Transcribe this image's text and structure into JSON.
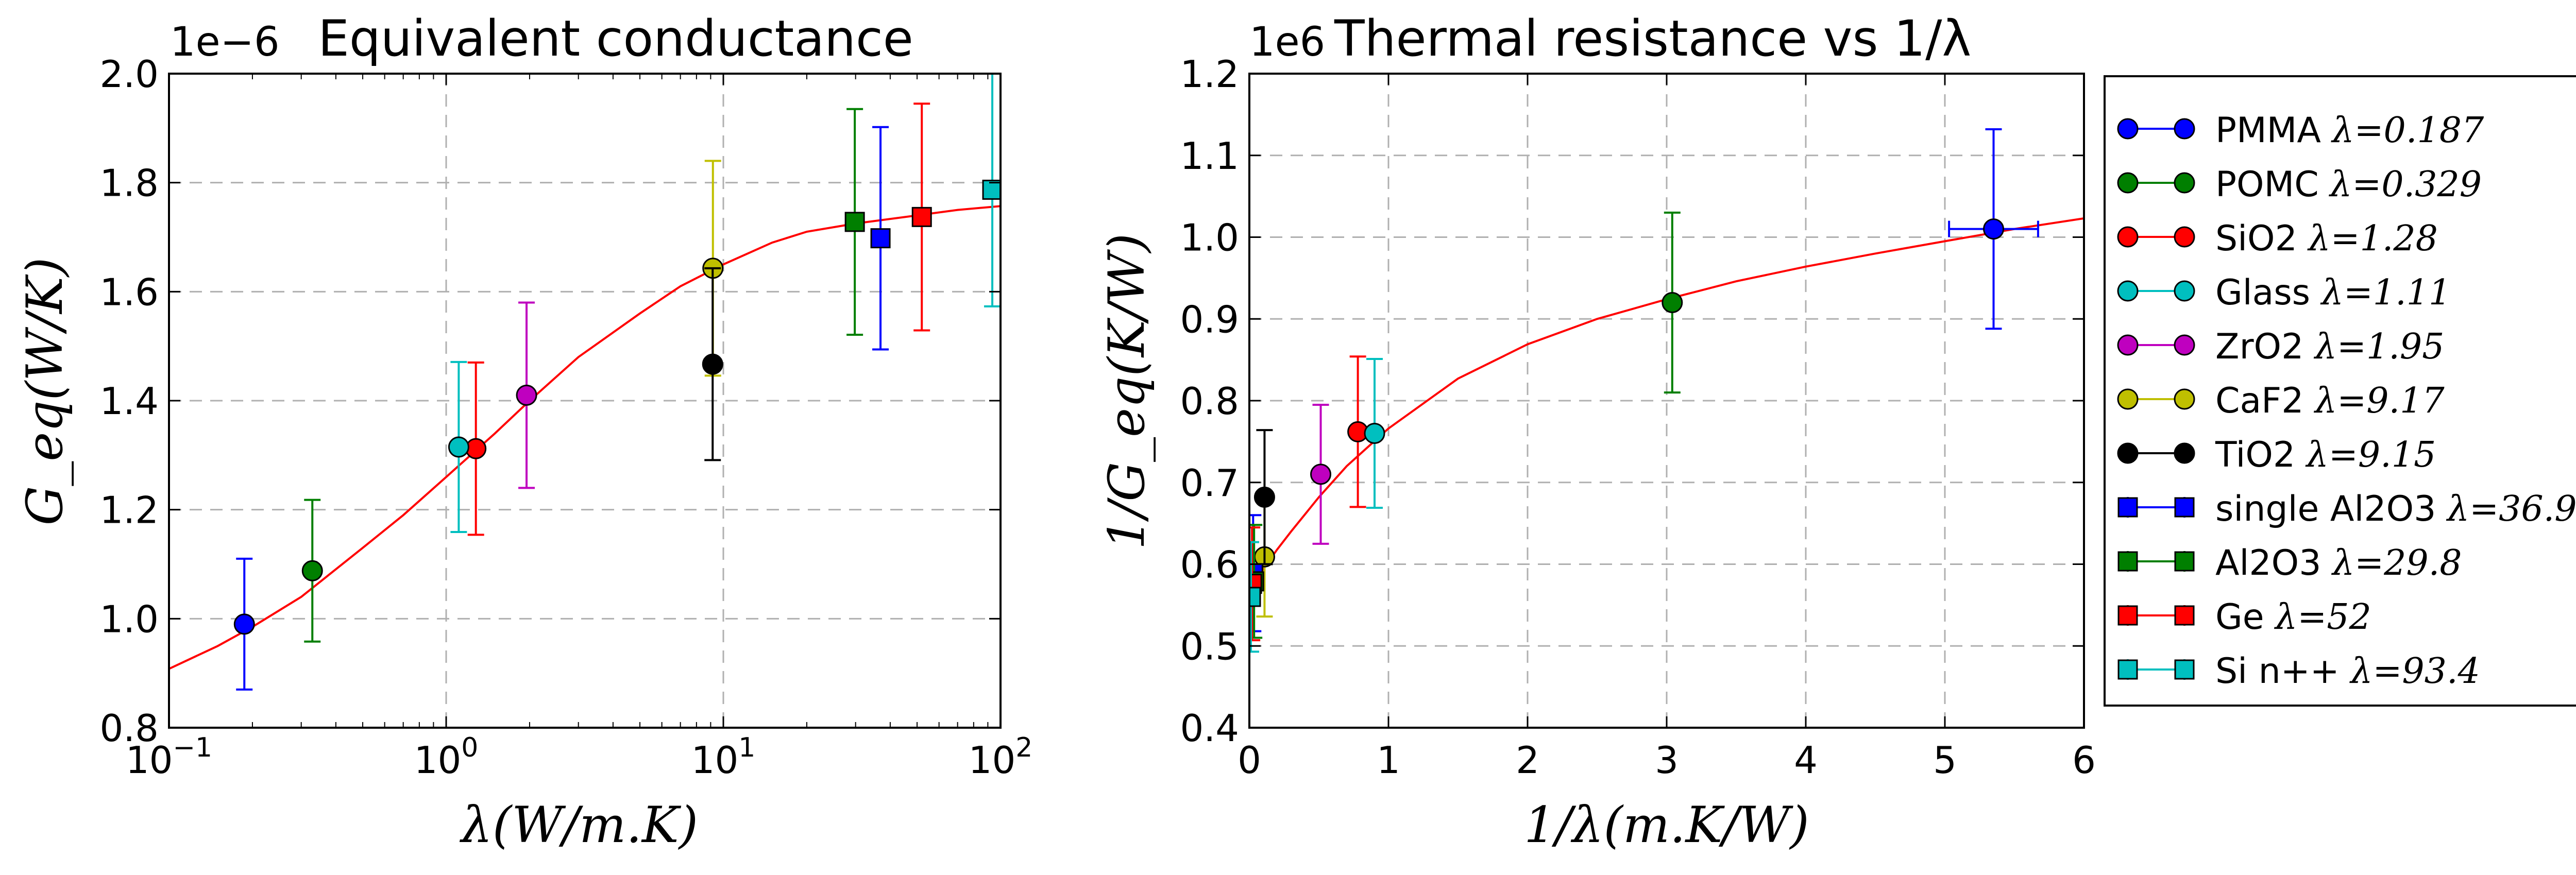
{
  "colors": {
    "blue": "#0000ff",
    "green": "#007f00",
    "red": "#ff0000",
    "cyan": "#00bfbf",
    "magenta": "#bf00bf",
    "yellow": "#bfbf00",
    "black": "#000000",
    "fit": "#ff0000",
    "grid": "#b0b0b0"
  },
  "chart_data": [
    {
      "type": "scatter",
      "title": "Equivalent conductance",
      "offset_label": "1e−6",
      "xlabel": "λ(W/m.K)",
      "ylabel": "G_eq(W/K)",
      "xscale": "log",
      "xlim": [
        0.1,
        100
      ],
      "ylim": [
        0.8,
        2.0
      ],
      "grid": true,
      "xticks": [
        {
          "value": 0.1,
          "base": "10",
          "exp": "−1"
        },
        {
          "value": 1,
          "base": "10",
          "exp": "0"
        },
        {
          "value": 10,
          "base": "10",
          "exp": "1"
        },
        {
          "value": 100,
          "base": "10",
          "exp": "2"
        }
      ],
      "yticks": [
        {
          "value": 0.8,
          "label": "0.8"
        },
        {
          "value": 1.0,
          "label": "1.0"
        },
        {
          "value": 1.2,
          "label": "1.2"
        },
        {
          "value": 1.4,
          "label": "1.4"
        },
        {
          "value": 1.6,
          "label": "1.6"
        },
        {
          "value": 1.8,
          "label": "1.8"
        },
        {
          "value": 2.0,
          "label": "2.0"
        }
      ],
      "fit_curve": {
        "color": "red",
        "x": [
          0.1,
          0.15,
          0.2,
          0.3,
          0.5,
          0.7,
          1.0,
          1.5,
          2.0,
          3.0,
          5.0,
          7.0,
          10.0,
          15.0,
          20.0,
          30.0,
          50.0,
          70.0,
          100.0
        ],
        "y": [
          0.908,
          0.95,
          0.985,
          1.04,
          1.13,
          1.19,
          1.26,
          1.34,
          1.4,
          1.48,
          1.56,
          1.61,
          1.65,
          1.69,
          1.71,
          1.725,
          1.74,
          1.75,
          1.757
        ]
      },
      "series": [
        {
          "name": "PMMA",
          "color": "blue",
          "marker": "circle",
          "x": 0.187,
          "y": 0.99,
          "yerr": 0.12
        },
        {
          "name": "POMC",
          "color": "green",
          "marker": "circle",
          "x": 0.329,
          "y": 1.088,
          "yerr": 0.13
        },
        {
          "name": "SiO2",
          "color": "red",
          "marker": "circle",
          "x": 1.28,
          "y": 1.312,
          "yerr": 0.158
        },
        {
          "name": "Glass",
          "color": "cyan",
          "marker": "circle",
          "x": 1.11,
          "y": 1.315,
          "yerr": 0.156
        },
        {
          "name": "ZrO2",
          "color": "magenta",
          "marker": "circle",
          "x": 1.95,
          "y": 1.41,
          "yerr": 0.17
        },
        {
          "name": "CaF2",
          "color": "yellow",
          "marker": "circle",
          "x": 9.17,
          "y": 1.643,
          "yerr": 0.197
        },
        {
          "name": "TiO2",
          "color": "black",
          "marker": "circle",
          "x": 9.15,
          "y": 1.467,
          "yerr": 0.176
        },
        {
          "name": "single Al2O3",
          "color": "blue",
          "marker": "square",
          "x": 36.9,
          "y": 1.698,
          "yerr": 0.204
        },
        {
          "name": "Al2O3",
          "color": "green",
          "marker": "square",
          "x": 29.8,
          "y": 1.728,
          "yerr": 0.207
        },
        {
          "name": "Ge",
          "color": "red",
          "marker": "square",
          "x": 52,
          "y": 1.737,
          "yerr": 0.208
        },
        {
          "name": "Si n++",
          "color": "cyan",
          "marker": "square",
          "x": 93.4,
          "y": 1.787,
          "yerr": 0.214
        }
      ]
    },
    {
      "type": "scatter",
      "title": "Thermal resistance vs 1/λ",
      "offset_label": "1e6",
      "xlabel": "1/λ(m.K/W)",
      "ylabel": "1/G_eq(K/W)",
      "xscale": "linear",
      "xlim": [
        0,
        6
      ],
      "ylim": [
        0.4,
        1.2
      ],
      "grid": true,
      "xticks": [
        {
          "value": 0,
          "label": "0"
        },
        {
          "value": 1,
          "label": "1"
        },
        {
          "value": 2,
          "label": "2"
        },
        {
          "value": 3,
          "label": "3"
        },
        {
          "value": 4,
          "label": "4"
        },
        {
          "value": 5,
          "label": "5"
        },
        {
          "value": 6,
          "label": "6"
        }
      ],
      "yticks": [
        {
          "value": 0.4,
          "label": "0.4"
        },
        {
          "value": 0.5,
          "label": "0.5"
        },
        {
          "value": 0.6,
          "label": "0.6"
        },
        {
          "value": 0.7,
          "label": "0.7"
        },
        {
          "value": 0.8,
          "label": "0.8"
        },
        {
          "value": 0.9,
          "label": "0.9"
        },
        {
          "value": 1.0,
          "label": "1.0"
        },
        {
          "value": 1.1,
          "label": "1.1"
        },
        {
          "value": 1.2,
          "label": "1.2"
        }
      ],
      "fit_curve": {
        "color": "red",
        "x": [
          0.01,
          0.03,
          0.05,
          0.1,
          0.2,
          0.3,
          0.5,
          0.7,
          1.0,
          1.5,
          2.0,
          2.5,
          3.0,
          3.5,
          4.0,
          4.5,
          5.0,
          5.5,
          6.0
        ],
        "y": [
          0.569,
          0.574,
          0.579,
          0.594,
          0.618,
          0.64,
          0.682,
          0.72,
          0.766,
          0.827,
          0.869,
          0.9,
          0.924,
          0.946,
          0.964,
          0.98,
          0.995,
          1.01,
          1.023
        ]
      },
      "series": [
        {
          "name": "PMMA",
          "color": "blue",
          "marker": "circle",
          "x": 5.35,
          "y": 1.01,
          "yerr": 0.122,
          "xerr": 0.32
        },
        {
          "name": "POMC",
          "color": "green",
          "marker": "circle",
          "x": 3.04,
          "y": 0.92,
          "yerr": 0.11
        },
        {
          "name": "SiO2",
          "color": "red",
          "marker": "circle",
          "x": 0.78,
          "y": 0.762,
          "yerr": 0.092
        },
        {
          "name": "Glass",
          "color": "cyan",
          "marker": "circle",
          "x": 0.9,
          "y": 0.76,
          "yerr": 0.091
        },
        {
          "name": "ZrO2",
          "color": "magenta",
          "marker": "circle",
          "x": 0.513,
          "y": 0.71,
          "yerr": 0.085
        },
        {
          "name": "CaF2",
          "color": "yellow",
          "marker": "circle",
          "x": 0.109,
          "y": 0.609,
          "yerr": 0.073
        },
        {
          "name": "TiO2",
          "color": "black",
          "marker": "circle",
          "x": 0.109,
          "y": 0.682,
          "yerr": 0.082
        },
        {
          "name": "single Al2O3",
          "color": "blue",
          "marker": "square",
          "x": 0.027,
          "y": 0.589,
          "yerr": 0.071
        },
        {
          "name": "Al2O3",
          "color": "green",
          "marker": "square",
          "x": 0.034,
          "y": 0.579,
          "yerr": 0.069
        },
        {
          "name": "Ge",
          "color": "red",
          "marker": "square",
          "x": 0.019,
          "y": 0.576,
          "yerr": 0.069
        },
        {
          "name": "Si n++",
          "color": "cyan",
          "marker": "square",
          "x": 0.011,
          "y": 0.56,
          "yerr": 0.067
        }
      ]
    }
  ],
  "legend": {
    "placement": "right of second chart",
    "entries": [
      {
        "name": "PMMA",
        "lambda_text": "λ=0.187",
        "color": "blue",
        "marker": "circle"
      },
      {
        "name": "POMC",
        "lambda_text": "λ=0.329",
        "color": "green",
        "marker": "circle"
      },
      {
        "name": "SiO2",
        "lambda_text": "λ=1.28",
        "color": "red",
        "marker": "circle"
      },
      {
        "name": "Glass",
        "lambda_text": "λ=1.11",
        "color": "cyan",
        "marker": "circle"
      },
      {
        "name": "ZrO2",
        "lambda_text": "λ=1.95",
        "color": "magenta",
        "marker": "circle"
      },
      {
        "name": "CaF2",
        "lambda_text": "λ=9.17",
        "color": "yellow",
        "marker": "circle"
      },
      {
        "name": "TiO2",
        "lambda_text": "λ=9.15",
        "color": "black",
        "marker": "circle"
      },
      {
        "name": "single Al2O3",
        "lambda_text": "λ=36.9",
        "color": "blue",
        "marker": "square"
      },
      {
        "name": "Al2O3",
        "lambda_text": "λ=29.8",
        "color": "green",
        "marker": "square"
      },
      {
        "name": "Ge",
        "lambda_text": "λ=52",
        "color": "red",
        "marker": "square"
      },
      {
        "name": "Si n++",
        "lambda_text": "λ=93.4",
        "color": "cyan",
        "marker": "square"
      }
    ]
  }
}
